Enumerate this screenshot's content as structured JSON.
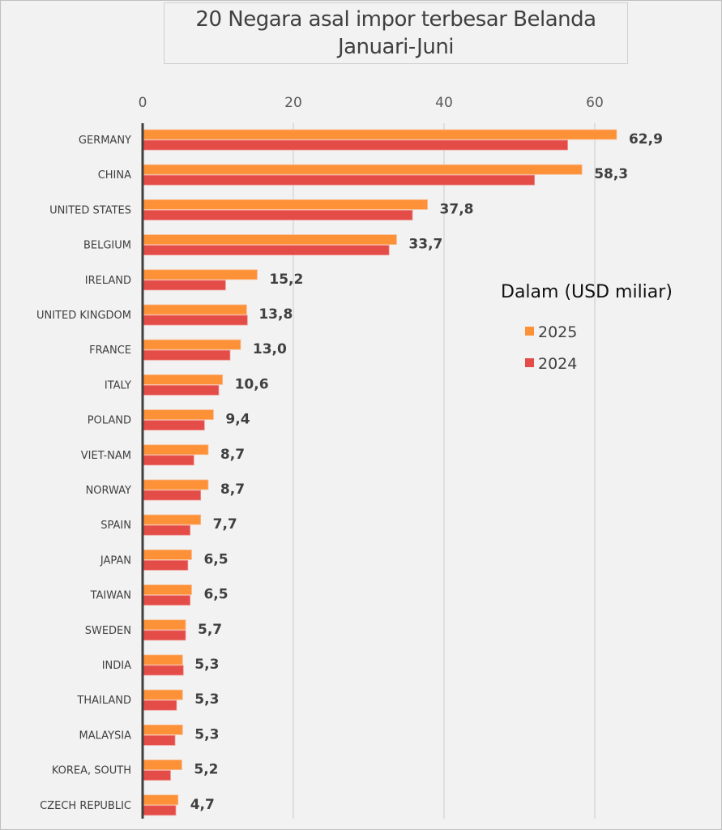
{
  "chart_data": {
    "type": "bar",
    "orientation": "horizontal",
    "title": "20 Negara asal impor terbesar Belanda",
    "subtitle": "Januari-Juni",
    "unit_label": "Dalam (USD miliar)",
    "xlabel": "",
    "ylabel": "",
    "xlim": [
      0,
      65
    ],
    "x_ticks": [
      "0",
      "20",
      "40",
      "60"
    ],
    "x_tick_values": [
      0,
      20,
      40,
      60
    ],
    "grid": true,
    "legend_position": "right",
    "categories": [
      "GERMANY",
      "CHINA",
      "UNITED STATES",
      "BELGIUM",
      "IRELAND",
      "UNITED KINGDOM",
      "FRANCE",
      "ITALY",
      "POLAND",
      "VIET-NAM",
      "NORWAY",
      "SPAIN",
      "JAPAN",
      "TAIWAN",
      "SWEDEN",
      "INDIA",
      "THAILAND",
      "MALAYSIA",
      "KOREA, SOUTH",
      "CZECH REPUBLIC"
    ],
    "series": [
      {
        "name": "2025",
        "color": "#fd9138",
        "values": [
          62.9,
          58.3,
          37.8,
          33.7,
          15.2,
          13.8,
          13.0,
          10.6,
          9.4,
          8.7,
          8.7,
          7.7,
          6.5,
          6.5,
          5.7,
          5.3,
          5.3,
          5.3,
          5.2,
          4.7
        ],
        "labels": [
          "62,9",
          "58,3",
          "37,8",
          "33,7",
          "15,2",
          "13,8",
          "13,0",
          "10,6",
          "9,4",
          "8,7",
          "8,7",
          "7,7",
          "6,5",
          "6,5",
          "5,7",
          "5,3",
          "5,3",
          "5,3",
          "5,2",
          "4,7"
        ]
      },
      {
        "name": "2024",
        "color": "#e44c47",
        "values": [
          56.4,
          52.0,
          35.8,
          32.7,
          11.0,
          13.9,
          11.6,
          10.1,
          8.2,
          6.8,
          7.7,
          6.3,
          6.0,
          6.3,
          5.7,
          5.4,
          4.5,
          4.3,
          3.7,
          4.4
        ]
      }
    ]
  }
}
